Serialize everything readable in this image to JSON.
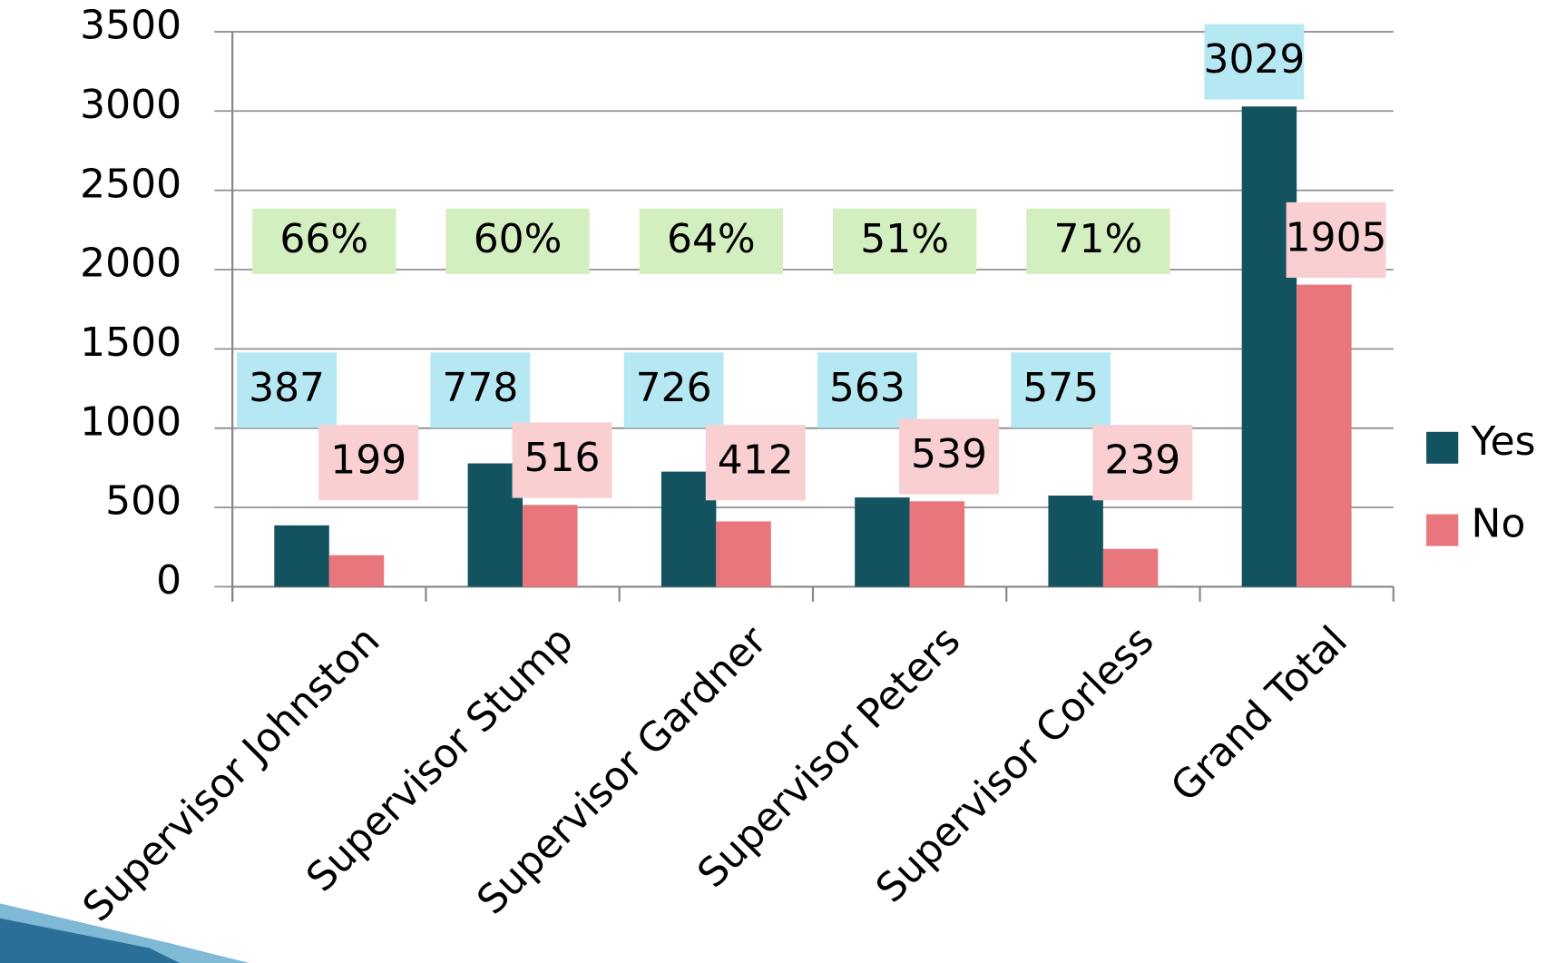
{
  "chart_data": {
    "type": "bar",
    "categories": [
      "Supervisor Johnston",
      "Supervisor Stump",
      "Supervisor Gardner",
      "Supervisor Peters",
      "Supervisor Corless",
      "Grand Total"
    ],
    "series": [
      {
        "name": "Yes",
        "color": "#12535f",
        "values": [
          387,
          778,
          726,
          563,
          575,
          3029
        ]
      },
      {
        "name": "No",
        "color": "#e9767c",
        "values": [
          199,
          516,
          412,
          539,
          239,
          1905
        ]
      }
    ],
    "annotations": [
      "66%",
      "60%",
      "64%",
      "51%",
      "71%"
    ],
    "ylim": [
      0,
      3500
    ],
    "yticks": [
      0,
      500,
      1000,
      1500,
      2000,
      2500,
      3000,
      3500
    ],
    "grid": true,
    "legend": "right"
  }
}
